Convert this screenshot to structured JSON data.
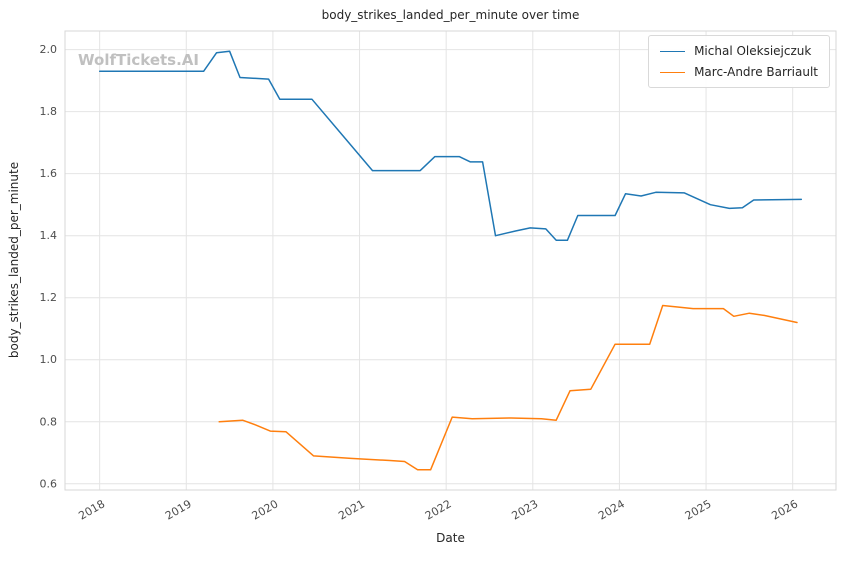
{
  "watermark": "WolfTickets.AI",
  "chart_data": {
    "type": "line",
    "title": "body_strikes_landed_per_minute over time",
    "xlabel": "Date",
    "ylabel": "body_strikes_landed_per_minute",
    "xlim": [
      2017.6,
      2026.5
    ],
    "ylim": [
      0.58,
      2.06
    ],
    "xticks": [
      2018,
      2019,
      2020,
      2021,
      2022,
      2023,
      2024,
      2025,
      2026
    ],
    "yticks": [
      0.6,
      0.8,
      1.0,
      1.2,
      1.4,
      1.6,
      1.8,
      2.0
    ],
    "grid": true,
    "legend_position": "upper right",
    "colors": {
      "grid": "#e4e4e4",
      "spine": "#d7d7d7",
      "tick_text": "#4d4d4d",
      "watermark": "#c0c0c0"
    },
    "series": [
      {
        "name": "Michal Oleksiejczuk",
        "color": "#1f77b4",
        "points": [
          [
            2018.0,
            1.93
          ],
          [
            2019.2,
            1.93
          ],
          [
            2019.35,
            1.99
          ],
          [
            2019.5,
            1.995
          ],
          [
            2019.62,
            1.91
          ],
          [
            2019.95,
            1.905
          ],
          [
            2020.08,
            1.84
          ],
          [
            2020.45,
            1.84
          ],
          [
            2021.15,
            1.61
          ],
          [
            2021.7,
            1.61
          ],
          [
            2021.87,
            1.655
          ],
          [
            2022.15,
            1.655
          ],
          [
            2022.28,
            1.638
          ],
          [
            2022.42,
            1.638
          ],
          [
            2022.57,
            1.4
          ],
          [
            2022.8,
            1.415
          ],
          [
            2022.97,
            1.425
          ],
          [
            2023.15,
            1.422
          ],
          [
            2023.27,
            1.385
          ],
          [
            2023.4,
            1.385
          ],
          [
            2023.52,
            1.465
          ],
          [
            2023.95,
            1.465
          ],
          [
            2024.07,
            1.535
          ],
          [
            2024.25,
            1.528
          ],
          [
            2024.42,
            1.54
          ],
          [
            2024.75,
            1.538
          ],
          [
            2025.05,
            1.5
          ],
          [
            2025.27,
            1.488
          ],
          [
            2025.42,
            1.49
          ],
          [
            2025.55,
            1.515
          ],
          [
            2026.1,
            1.517
          ]
        ]
      },
      {
        "name": "Marc-Andre Barriault",
        "color": "#ff7f0e",
        "points": [
          [
            2019.38,
            0.8
          ],
          [
            2019.65,
            0.805
          ],
          [
            2019.8,
            0.79
          ],
          [
            2019.97,
            0.77
          ],
          [
            2020.15,
            0.768
          ],
          [
            2020.47,
            0.69
          ],
          [
            2020.9,
            0.682
          ],
          [
            2021.35,
            0.675
          ],
          [
            2021.52,
            0.672
          ],
          [
            2021.67,
            0.645
          ],
          [
            2021.82,
            0.645
          ],
          [
            2022.07,
            0.815
          ],
          [
            2022.3,
            0.81
          ],
          [
            2022.75,
            0.812
          ],
          [
            2023.1,
            0.81
          ],
          [
            2023.27,
            0.805
          ],
          [
            2023.43,
            0.9
          ],
          [
            2023.67,
            0.905
          ],
          [
            2023.95,
            1.05
          ],
          [
            2024.35,
            1.05
          ],
          [
            2024.5,
            1.175
          ],
          [
            2024.67,
            1.17
          ],
          [
            2024.85,
            1.165
          ],
          [
            2025.2,
            1.165
          ],
          [
            2025.32,
            1.14
          ],
          [
            2025.5,
            1.15
          ],
          [
            2025.67,
            1.143
          ],
          [
            2026.05,
            1.12
          ]
        ]
      }
    ]
  }
}
